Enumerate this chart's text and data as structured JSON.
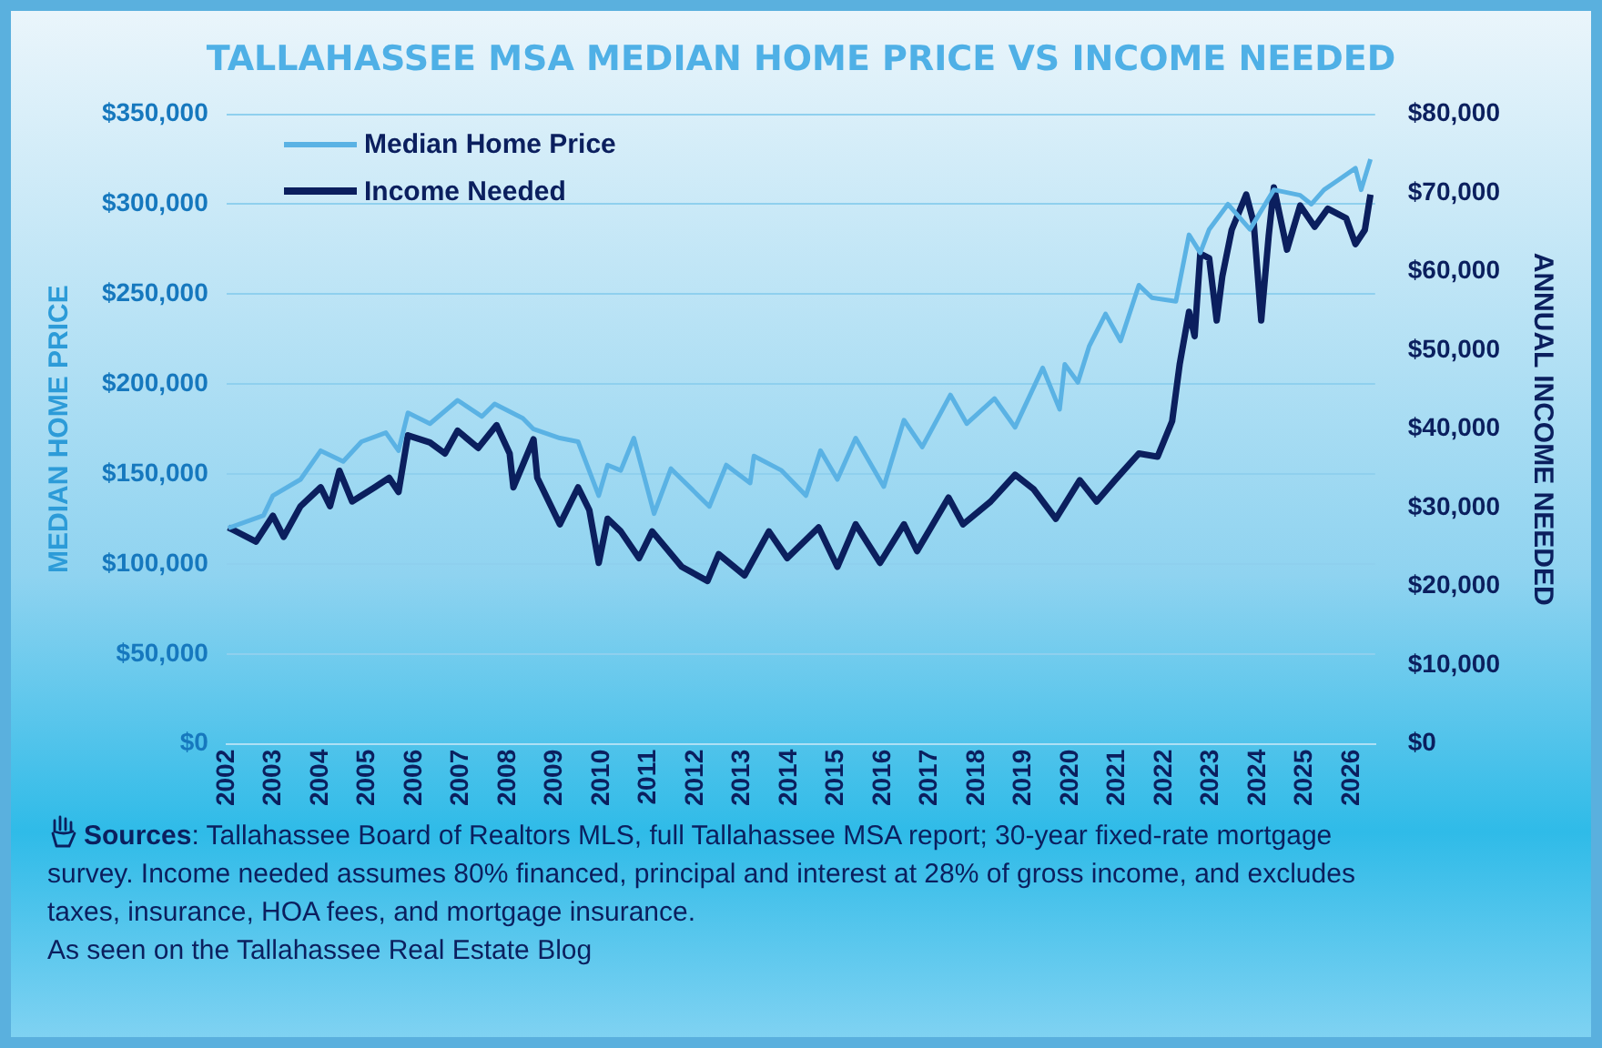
{
  "chart_data": {
    "type": "line",
    "title": "TALLAHASSEE MSA MEDIAN HOME PRICE VS INCOME NEEDED",
    "ylabel": "MEDIAN HOME PRICE",
    "y2label": "ANNUAL INCOME NEEDED",
    "xlim": [
      2002,
      2026.5
    ],
    "xticks": [
      2002,
      2003,
      2004,
      2005,
      2006,
      2007,
      2008,
      2009,
      2010,
      2011,
      2012,
      2013,
      2014,
      2015,
      2016,
      2017,
      2018,
      2019,
      2020,
      2021,
      2022,
      2023,
      2024,
      2025,
      2026
    ],
    "ylim": [
      0,
      350000
    ],
    "yticks": [
      {
        "value": 0,
        "label": "$0"
      },
      {
        "value": 50000,
        "label": "$50,000"
      },
      {
        "value": 100000,
        "label": "$100,000"
      },
      {
        "value": 150000,
        "label": "$150,000"
      },
      {
        "value": 200000,
        "label": "$200,000"
      },
      {
        "value": 250000,
        "label": "$250,000"
      },
      {
        "value": 300000,
        "label": "$300,000"
      },
      {
        "value": 350000,
        "label": "$350,000"
      }
    ],
    "y2lim": [
      0,
      80000
    ],
    "y2ticks": [
      {
        "value": 0,
        "label": "$0"
      },
      {
        "value": 10000,
        "label": "$10,000"
      },
      {
        "value": 20000,
        "label": "$20,000"
      },
      {
        "value": 30000,
        "label": "$30,000"
      },
      {
        "value": 40000,
        "label": "$40,000"
      },
      {
        "value": 50000,
        "label": "$50,000"
      },
      {
        "value": 60000,
        "label": "$60,000"
      },
      {
        "value": 70000,
        "label": "$70,000"
      },
      {
        "value": 80000,
        "label": "$80,000"
      }
    ],
    "grid": "y",
    "legend": "top left",
    "marker": "none",
    "line_style": "solid",
    "series": [
      {
        "name": "Median Home Price",
        "color": "#5ab2e4",
        "x": [
          2002.04,
          2002.79,
          2002.99,
          2003.58,
          2004.01,
          2004.49,
          2004.88,
          2005.4,
          2005.67,
          2005.87,
          2006.34,
          2006.93,
          2007.45,
          2007.72,
          2008.32,
          2008.55,
          2009.11,
          2009.5,
          2009.94,
          2010.13,
          2010.41,
          2010.69,
          2011.12,
          2011.48,
          2012.3,
          2012.66,
          2013.17,
          2013.25,
          2013.84,
          2014.36,
          2014.67,
          2015.03,
          2015.42,
          2016.02,
          2016.45,
          2016.84,
          2017.44,
          2017.79,
          2018.38,
          2018.82,
          2019.41,
          2019.77,
          2019.88,
          2020.16,
          2020.4,
          2020.75,
          2021.07,
          2021.46,
          2021.74,
          2022.25,
          2022.53,
          2022.77,
          2022.96,
          2023.36,
          2023.83,
          2024.34,
          2024.9,
          2025.14,
          2025.41,
          2025.69,
          2026.08,
          2026.2,
          2026.4
        ],
        "values": [
          120000,
          127000,
          138000,
          147000,
          163000,
          157000,
          168000,
          173000,
          163000,
          184000,
          178000,
          191000,
          182000,
          189000,
          181000,
          175000,
          170000,
          168000,
          138000,
          155000,
          152000,
          170000,
          128000,
          153000,
          132000,
          155000,
          145000,
          160000,
          152000,
          138000,
          163000,
          147000,
          170000,
          143000,
          180000,
          165000,
          194000,
          178000,
          192000,
          176000,
          209000,
          186000,
          211000,
          201000,
          221000,
          239000,
          224000,
          255000,
          248000,
          246000,
          283000,
          273000,
          286000,
          300000,
          286000,
          308000,
          305000,
          300000,
          308000,
          313000,
          320000,
          308000,
          325000
        ]
      },
      {
        "name": "Income Needed",
        "color": "#0b1f5e",
        "axis": "y2",
        "x": [
          2002.04,
          2002.63,
          2002.99,
          2003.22,
          2003.58,
          2004.01,
          2004.21,
          2004.41,
          2004.68,
          2005.16,
          2005.47,
          2005.67,
          2005.87,
          2006.34,
          2006.66,
          2006.93,
          2007.37,
          2007.76,
          2008.04,
          2008.12,
          2008.55,
          2008.63,
          2009.11,
          2009.5,
          2009.74,
          2009.94,
          2010.13,
          2010.41,
          2010.8,
          2011.08,
          2011.71,
          2012.26,
          2012.5,
          2013.05,
          2013.57,
          2013.96,
          2014.63,
          2015.03,
          2015.42,
          2015.94,
          2016.45,
          2016.73,
          2017.4,
          2017.71,
          2018.3,
          2018.82,
          2019.21,
          2019.69,
          2020.2,
          2020.56,
          2020.95,
          2021.46,
          2021.86,
          2022.17,
          2022.33,
          2022.53,
          2022.65,
          2022.77,
          2022.96,
          2023.12,
          2023.24,
          2023.44,
          2023.75,
          2023.91,
          2024.07,
          2024.23,
          2024.34,
          2024.62,
          2024.9,
          2025.21,
          2025.49,
          2025.88,
          2026.08,
          2026.28,
          2026.4
        ],
        "values": [
          27500,
          25700,
          29000,
          26300,
          30200,
          32600,
          30200,
          34700,
          30800,
          32600,
          33800,
          32000,
          39200,
          38300,
          36900,
          39800,
          37600,
          40500,
          36900,
          32600,
          38700,
          33800,
          27900,
          32600,
          29700,
          23000,
          28600,
          27000,
          23600,
          27000,
          22500,
          20700,
          24100,
          21400,
          27000,
          23600,
          27500,
          22500,
          27900,
          23000,
          27900,
          24500,
          31300,
          27900,
          30800,
          34200,
          32400,
          28600,
          33500,
          30800,
          33500,
          36900,
          36500,
          41000,
          48200,
          54900,
          51800,
          62300,
          61700,
          53800,
          59400,
          65300,
          69800,
          66200,
          53800,
          64600,
          70700,
          62800,
          68400,
          65700,
          68000,
          66800,
          63500,
          65300,
          69800
        ]
      }
    ],
    "annotations": [
      "Sources: Tallahassee Board of Realtors MLS, full Tallahassee MSA report; 30-year fixed-rate mortgage survey. Income needed assumes 80% financed, principal and interest at 28% of gross income, and excludes taxes, insurance, HOA fees, and mortgage insurance.",
      "As seen on the Tallahassee Real Estate Blog"
    ]
  }
}
